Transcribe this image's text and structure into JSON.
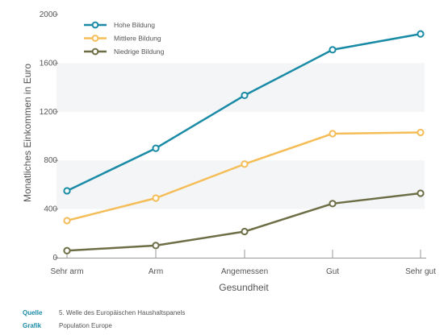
{
  "chart_data": {
    "type": "line",
    "categories": [
      "Sehr arm",
      "Arm",
      "Angemessen",
      "Gut",
      "Sehr gut"
    ],
    "series": [
      {
        "name": "Hohe Bildung",
        "color": "#1a8ba6",
        "values": [
          550,
          900,
          1335,
          1710,
          1840
        ]
      },
      {
        "name": "Mittlere Bildung",
        "color": "#f5bd57",
        "values": [
          305,
          490,
          770,
          1020,
          1030
        ]
      },
      {
        "name": "Niedrige Bildung",
        "color": "#6e6e46",
        "values": [
          58,
          100,
          215,
          445,
          530
        ]
      }
    ],
    "xlabel": "Gesundheit",
    "ylabel": "Monatliches Einkommen in Euro",
    "ylim": [
      0,
      2000
    ],
    "yticks": [
      0,
      400,
      800,
      1200,
      1600,
      2000
    ],
    "grid": "alternating horizontal bands",
    "legend": "top-left"
  },
  "footer": {
    "quelle_label": "Quelle",
    "quelle_text": "5. Welle des Europäischen Haushaltspanels",
    "grafik_label": "Grafik",
    "grafik_text": "Population Europe"
  }
}
